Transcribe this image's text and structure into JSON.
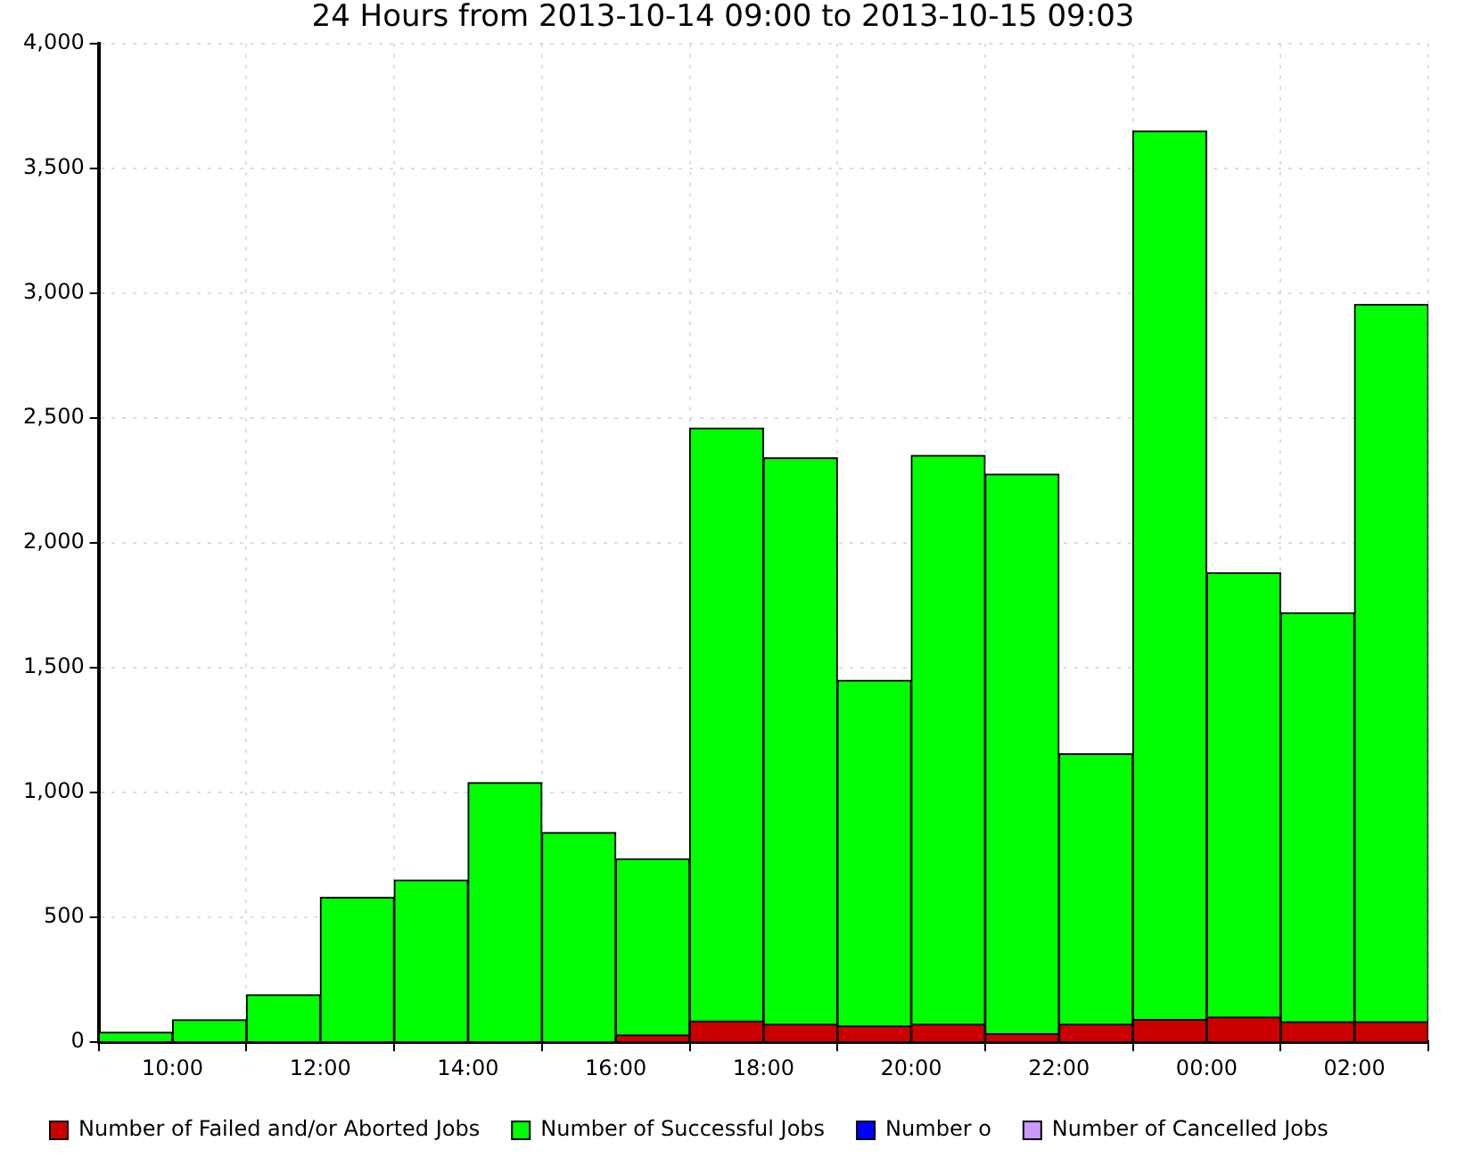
{
  "chart_data": {
    "type": "bar",
    "title": "24 Hours from 2013-10-14 09:00 to 2013-10-15 09:03",
    "x": [
      "2013-10-14T09:30",
      "2013-10-14T10:30",
      "2013-10-14T11:30",
      "2013-10-14T12:30",
      "2013-10-14T13:30",
      "2013-10-14T14:30",
      "2013-10-14T15:30",
      "2013-10-14T16:30",
      "2013-10-14T17:30",
      "2013-10-14T18:30",
      "2013-10-14T19:30",
      "2013-10-14T20:30",
      "2013-10-14T21:30",
      "2013-10-14T22:30",
      "2013-10-14T23:30",
      "2013-10-15T00:30",
      "2013-10-15T01:30",
      "2013-10-15T02:30"
    ],
    "series": [
      {
        "name": "Number of Failed and/or Aborted Jobs",
        "color": "#cc0000",
        "values": [
          0,
          0,
          0,
          0,
          0,
          0,
          0,
          30,
          85,
          72,
          65,
          72,
          35,
          72,
          91,
          101,
          82,
          82
        ]
      },
      {
        "name": "Number of Successful Jobs",
        "color": "#00ff00",
        "values": [
          40,
          90,
          190,
          580,
          650,
          1040,
          840,
          705,
          2375,
          2268,
          1385,
          2278,
          2240,
          1083,
          3559,
          1779,
          1638,
          2873
        ]
      },
      {
        "name": "Number o",
        "color": "#0000ff",
        "values": [
          0,
          0,
          0,
          0,
          0,
          0,
          0,
          0,
          0,
          0,
          0,
          0,
          0,
          0,
          0,
          0,
          0,
          0
        ]
      },
      {
        "name": "Number of Cancelled Jobs",
        "color": "#cc99ff",
        "values": [
          0,
          0,
          0,
          0,
          0,
          0,
          0,
          0,
          0,
          0,
          0,
          0,
          0,
          0,
          0,
          0,
          0,
          0
        ]
      }
    ],
    "stacked": true,
    "xlim": [
      "2013-10-14T09:00",
      "2013-10-15T03:00"
    ],
    "xticks": [
      {
        "value": "2013-10-14T10:00",
        "label": "10:00"
      },
      {
        "value": "2013-10-14T12:00",
        "label": "12:00"
      },
      {
        "value": "2013-10-14T14:00",
        "label": "14:00"
      },
      {
        "value": "2013-10-14T16:00",
        "label": "16:00"
      },
      {
        "value": "2013-10-14T18:00",
        "label": "18:00"
      },
      {
        "value": "2013-10-14T20:00",
        "label": "20:00"
      },
      {
        "value": "2013-10-14T22:00",
        "label": "22:00"
      },
      {
        "value": "2013-10-15T00:00",
        "label": "00:00"
      },
      {
        "value": "2013-10-15T02:00",
        "label": "02:00"
      }
    ],
    "ylim": [
      0,
      4000
    ],
    "yticks": [
      0,
      {
        "value": 500,
        "label": "500"
      },
      {
        "value": 1000,
        "label": "1,000"
      },
      {
        "value": 1500,
        "label": "1,500"
      },
      {
        "value": 2000,
        "label": "2,000"
      },
      {
        "value": 2500,
        "label": "2,500"
      },
      {
        "value": 3000,
        "label": "3,000"
      },
      {
        "value": 3500,
        "label": "3,500"
      },
      {
        "value": 4000,
        "label": "4,000"
      }
    ],
    "grid": true,
    "legend": "bottom"
  }
}
